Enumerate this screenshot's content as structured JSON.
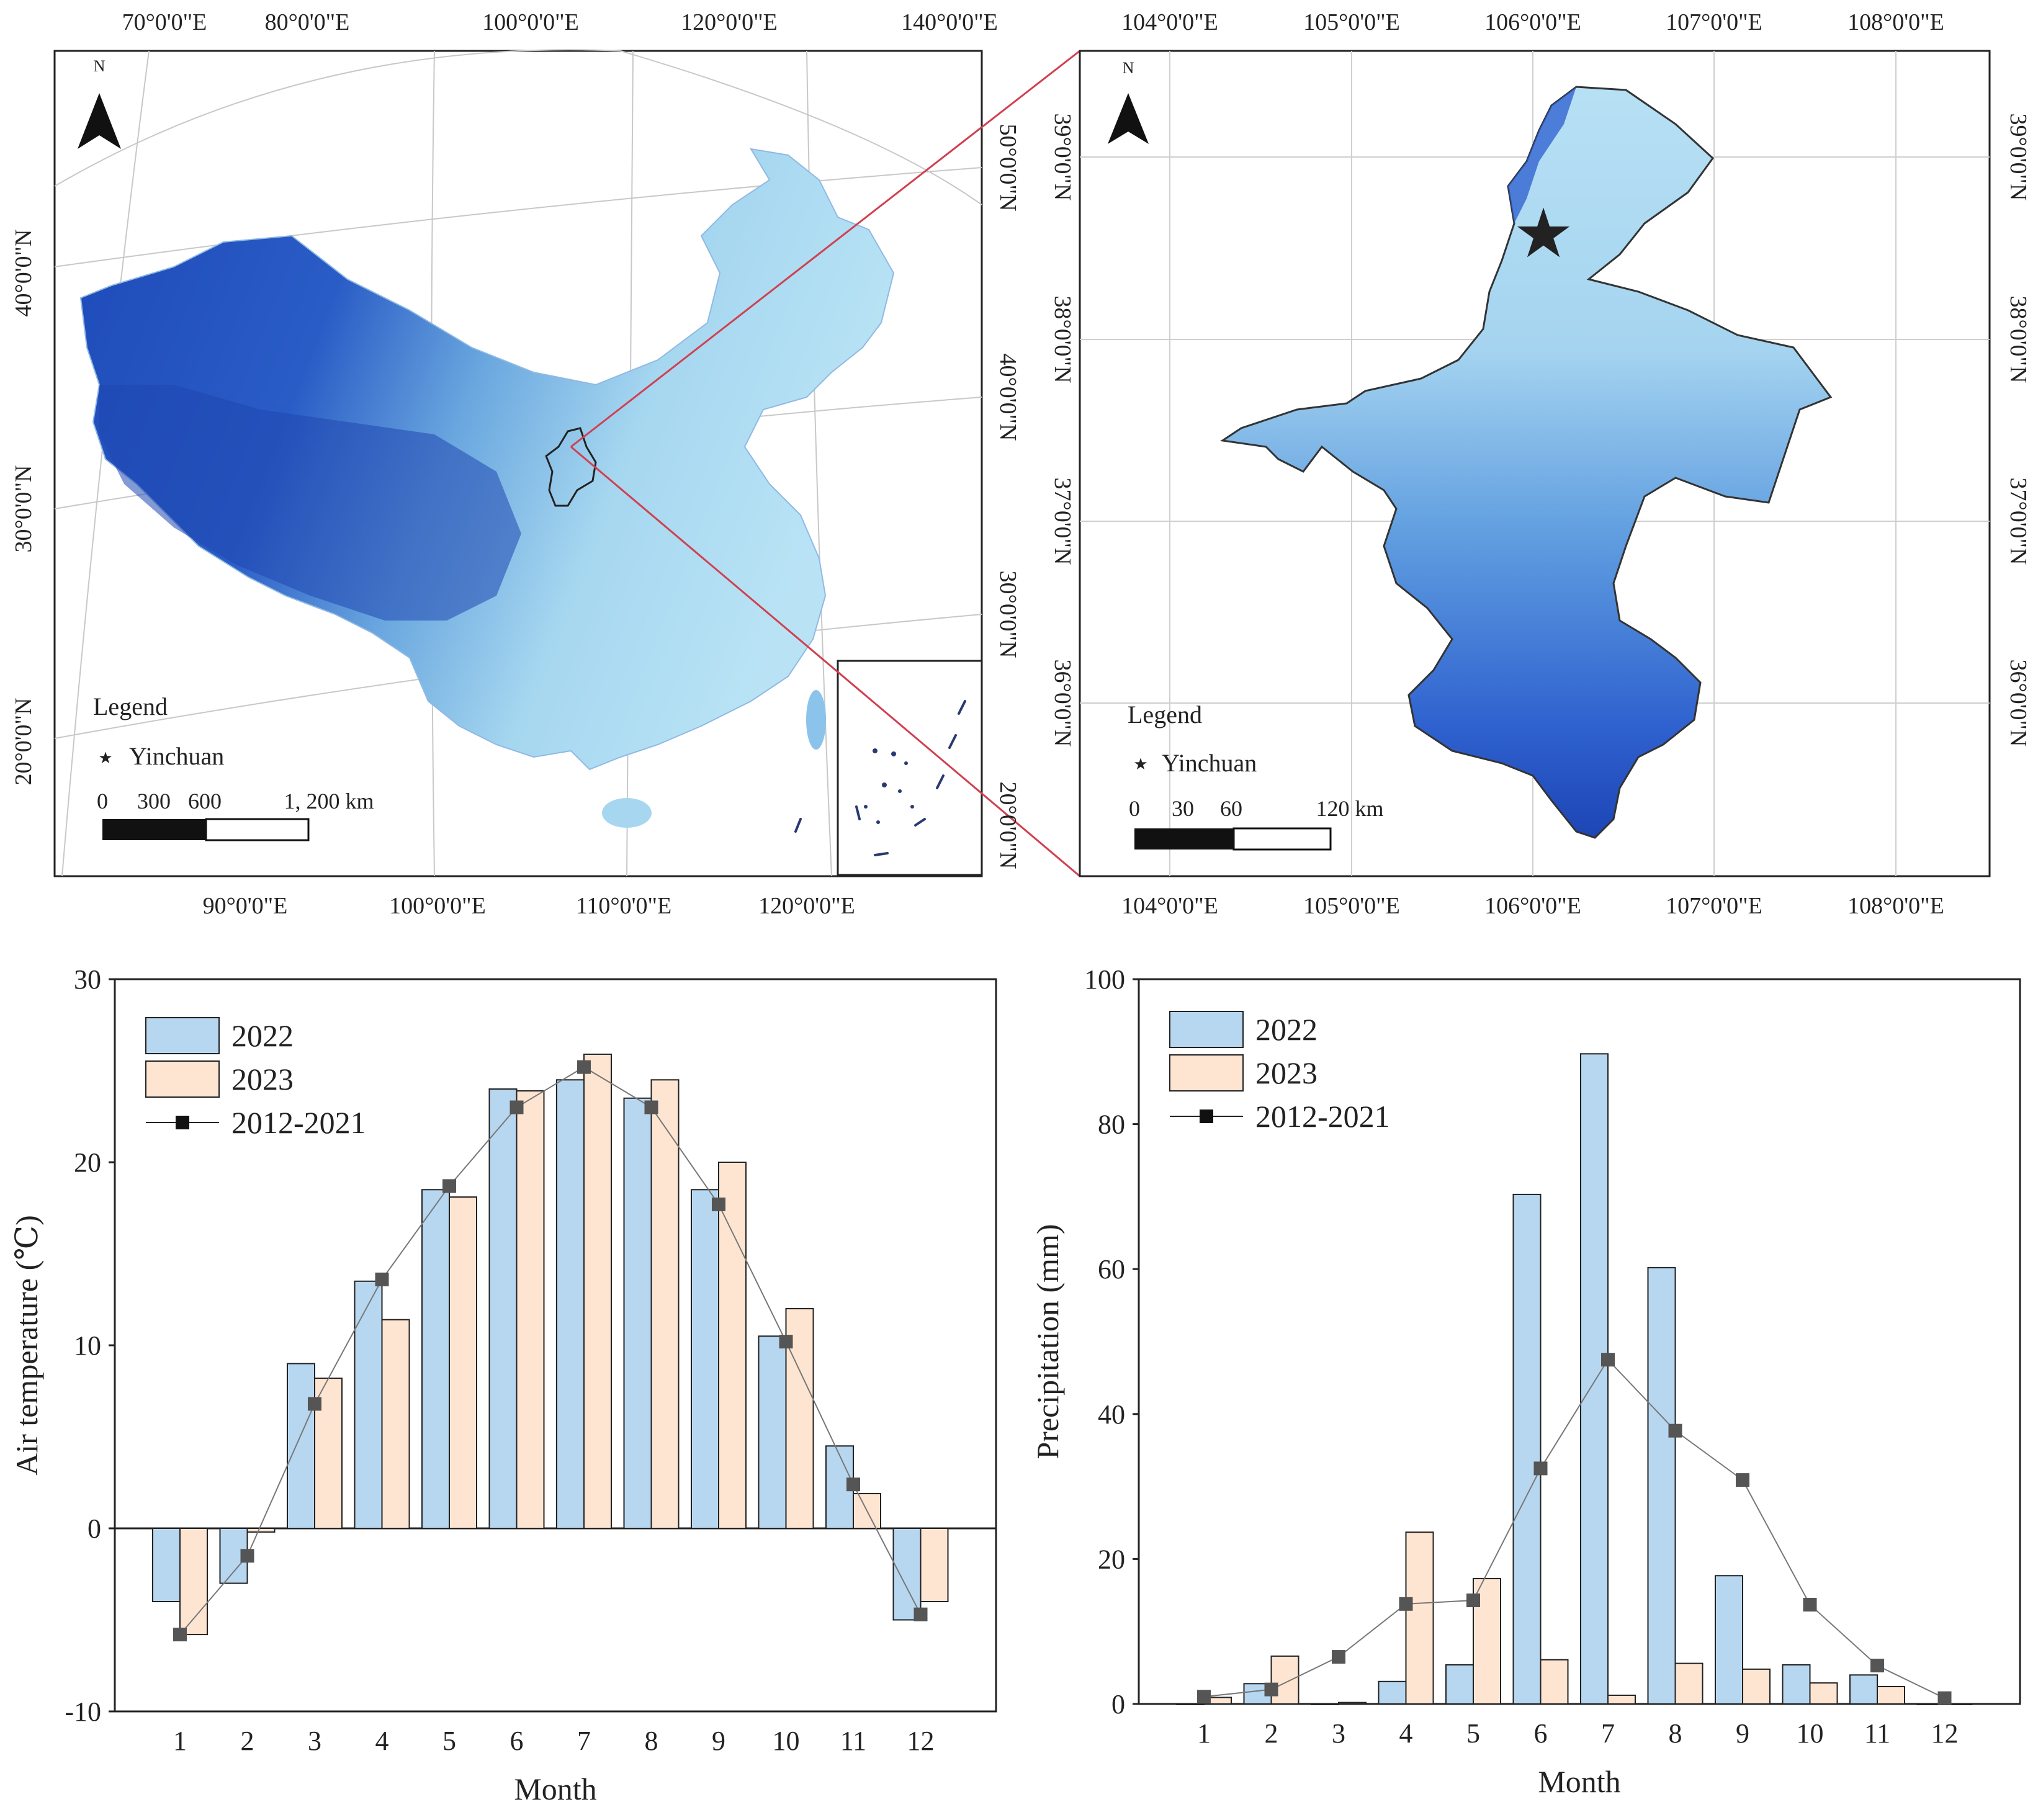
{
  "china_map": {
    "top_lon_labels": [
      "70°0'0\"E",
      "80°0'0\"E",
      "100°0'0\"E",
      "120°0'0\"E",
      "140°0'0\"E"
    ],
    "bottom_lon_labels": [
      "90°0'0\"E",
      "100°0'0\"E",
      "110°0'0\"E",
      "120°0'0\"E"
    ],
    "left_lat_labels": [
      "40°0'0\"N",
      "30°0'0\"N",
      "20°0'0\"N"
    ],
    "right_lat_labels": [
      "50°0'0\"N",
      "40°0'0\"N",
      "30°0'0\"N",
      "20°0'0\"N"
    ],
    "north": "N",
    "legend_title": "Legend",
    "legend_item": "Yinchuan",
    "scale_ticks": [
      "0",
      "300",
      "600",
      "1, 200 km"
    ]
  },
  "ningxia_map": {
    "top_lon_labels": [
      "104°0'0\"E",
      "105°0'0\"E",
      "106°0'0\"E",
      "107°0'0\"E",
      "108°0'0\"E"
    ],
    "bottom_lon_labels": [
      "104°0'0\"E",
      "105°0'0\"E",
      "106°0'0\"E",
      "107°0'0\"E",
      "108°0'0\"E"
    ],
    "left_lat_labels": [
      "39°0'0\"N",
      "38°0'0\"N",
      "37°0'0\"N",
      "36°0'0\"N"
    ],
    "right_lat_labels": [
      "39°0'0\"N",
      "38°0'0\"N",
      "37°0'0\"N",
      "36°0'0\"N"
    ],
    "north": "N",
    "legend_title": "Legend",
    "legend_item": "Yinchuan",
    "scale_ticks": [
      "0",
      "30",
      "60",
      "120 km"
    ]
  },
  "chart_data": [
    {
      "type": "bar",
      "title": "",
      "xlabel": "Month",
      "ylabel": "Air temperature (℃)",
      "ylim": [
        -10,
        30
      ],
      "yticks": [
        "-10",
        "0",
        "10",
        "20",
        "30"
      ],
      "categories": [
        "1",
        "2",
        "3",
        "4",
        "5",
        "6",
        "7",
        "8",
        "9",
        "10",
        "11",
        "12"
      ],
      "series": [
        {
          "name": "2022",
          "kind": "bar",
          "color": "#b7d7f0",
          "values": [
            -4.0,
            -3.0,
            9.0,
            13.5,
            18.5,
            24.0,
            24.5,
            23.5,
            18.5,
            10.5,
            4.5,
            -5.0
          ]
        },
        {
          "name": "2023",
          "kind": "bar",
          "color": "#fde5d2",
          "values": [
            -5.8,
            -0.2,
            8.2,
            11.4,
            18.1,
            23.9,
            25.9,
            24.5,
            20.0,
            12.0,
            1.9,
            -4.0
          ]
        },
        {
          "name": "2012-2021",
          "kind": "line",
          "color": "#555555",
          "values": [
            -5.8,
            -1.5,
            6.8,
            13.6,
            18.7,
            23.0,
            25.2,
            23.0,
            17.7,
            10.2,
            2.4,
            -4.7
          ]
        }
      ]
    },
    {
      "type": "bar",
      "title": "",
      "xlabel": "Month",
      "ylabel": "Precipitation (mm)",
      "ylim": [
        0,
        100
      ],
      "yticks": [
        "0",
        "20",
        "40",
        "60",
        "80",
        "100"
      ],
      "categories": [
        "1",
        "2",
        "3",
        "4",
        "5",
        "6",
        "7",
        "8",
        "9",
        "10",
        "11",
        "12"
      ],
      "series": [
        {
          "name": "2022",
          "kind": "bar",
          "color": "#b7d7f0",
          "values": [
            0.0,
            2.8,
            0.0,
            3.1,
            5.4,
            70.3,
            89.7,
            60.2,
            17.7,
            5.4,
            4.0,
            0.0
          ]
        },
        {
          "name": "2023",
          "kind": "bar",
          "color": "#fde5d2",
          "values": [
            0.9,
            6.6,
            0.2,
            23.7,
            17.3,
            6.1,
            1.2,
            5.6,
            4.8,
            2.9,
            2.4,
            0.0
          ]
        },
        {
          "name": "2012-2021",
          "kind": "line",
          "color": "#555555",
          "values": [
            1.0,
            2.0,
            6.5,
            13.8,
            14.3,
            32.5,
            47.5,
            37.7,
            30.9,
            13.7,
            5.3,
            0.8
          ]
        }
      ]
    }
  ]
}
